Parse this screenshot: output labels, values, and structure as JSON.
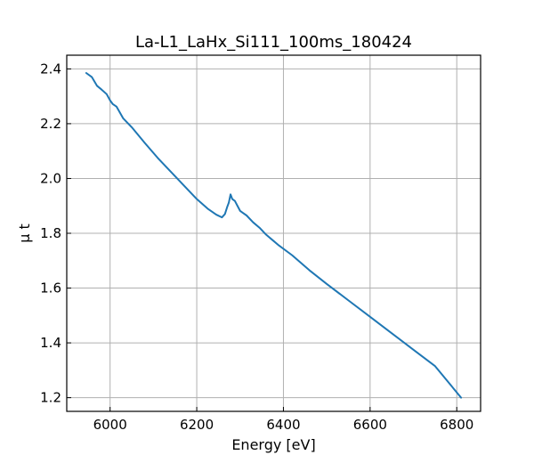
{
  "chart_data": {
    "type": "line",
    "title": "La-L1_LaHx_Si111_100ms_180424",
    "xlabel": "Energy [eV]",
    "ylabel": "μ t",
    "xlim": [
      5900,
      6855
    ],
    "ylim": [
      1.15,
      2.45
    ],
    "xticks": [
      6000,
      6200,
      6400,
      6600,
      6800
    ],
    "yticks": [
      1.2,
      1.4,
      1.6,
      1.8,
      2.0,
      2.2,
      2.4
    ],
    "grid": true,
    "line_color": "#1f77b4",
    "series": [
      {
        "x": [
          5945,
          5958,
          5970,
          5980,
          5992,
          6000,
          6006,
          6015,
          6030,
          6050,
          6080,
          6110,
          6140,
          6170,
          6200,
          6225,
          6245,
          6258,
          6265,
          6270,
          6274,
          6278,
          6282,
          6288,
          6294,
          6300,
          6306,
          6315,
          6330,
          6345,
          6360,
          6375,
          6390,
          6420,
          6460,
          6500,
          6550,
          6600,
          6650,
          6700,
          6750,
          6810
        ],
        "values": [
          2.385,
          2.37,
          2.338,
          2.325,
          2.308,
          2.285,
          2.272,
          2.262,
          2.22,
          2.187,
          2.13,
          2.075,
          2.025,
          1.975,
          1.925,
          1.89,
          1.868,
          1.858,
          1.87,
          1.895,
          1.912,
          1.942,
          1.925,
          1.918,
          1.9,
          1.882,
          1.875,
          1.865,
          1.84,
          1.82,
          1.795,
          1.775,
          1.755,
          1.72,
          1.665,
          1.615,
          1.555,
          1.495,
          1.435,
          1.375,
          1.315,
          1.2
        ]
      }
    ]
  }
}
